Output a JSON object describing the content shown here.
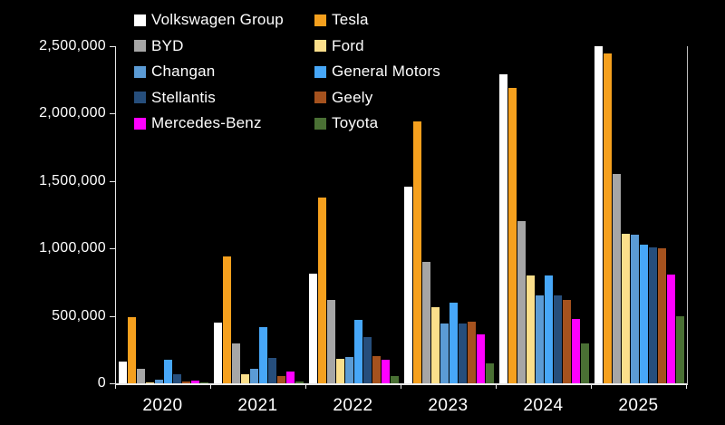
{
  "background": "#000000",
  "text_color": "#FFFFFF",
  "axis_color": "#E8E8E8",
  "chart_data": {
    "type": "bar",
    "title": "",
    "xlabel": "",
    "ylabel": "",
    "grid": false,
    "legend_position": "top-left",
    "categories": [
      "2020",
      "2021",
      "2022",
      "2023",
      "2024",
      "2025"
    ],
    "ylim": [
      0,
      2500000
    ],
    "y_tick_step": 500000,
    "y_ticks": [
      {
        "value": 0,
        "label": "0"
      },
      {
        "value": 500000,
        "label": "500,000"
      },
      {
        "value": 1000000,
        "label": "1,000,000"
      },
      {
        "value": 1500000,
        "label": "1,500,000"
      },
      {
        "value": 2000000,
        "label": "2,000,000"
      },
      {
        "value": 2500000,
        "label": "2,500,000"
      }
    ],
    "series": [
      {
        "name": "Volkswagen Group",
        "color": "#FFFFFF",
        "values": [
          160000,
          450000,
          810000,
          1460000,
          2290000,
          2500000
        ]
      },
      {
        "name": "Tesla",
        "color": "#F5A01E",
        "values": [
          490000,
          940000,
          1380000,
          1940000,
          2190000,
          2445000
        ]
      },
      {
        "name": "BYD",
        "color": "#A6A6A6",
        "values": [
          105000,
          295000,
          620000,
          900000,
          1200000,
          1550000
        ]
      },
      {
        "name": "Ford",
        "color": "#FBDF8B",
        "values": [
          8000,
          70000,
          180000,
          565000,
          800000,
          1110000
        ]
      },
      {
        "name": "Changan",
        "color": "#5B9BD5",
        "values": [
          30000,
          110000,
          195000,
          445000,
          650000,
          1100000
        ]
      },
      {
        "name": "General Motors",
        "color": "#47A7F8",
        "values": [
          175000,
          420000,
          470000,
          600000,
          800000,
          1025000
        ]
      },
      {
        "name": "Stellantis",
        "color": "#264E7C",
        "values": [
          70000,
          190000,
          345000,
          445000,
          650000,
          1005000
        ]
      },
      {
        "name": "Geely",
        "color": "#A5521E",
        "values": [
          12000,
          55000,
          200000,
          460000,
          620000,
          1000000
        ]
      },
      {
        "name": "Mercedes-Benz",
        "color": "#FF00FF",
        "values": [
          18000,
          90000,
          175000,
          360000,
          480000,
          805000
        ]
      },
      {
        "name": "Toyota",
        "color": "#4A7034",
        "values": [
          3000,
          15000,
          55000,
          150000,
          295000,
          495000
        ]
      }
    ]
  }
}
